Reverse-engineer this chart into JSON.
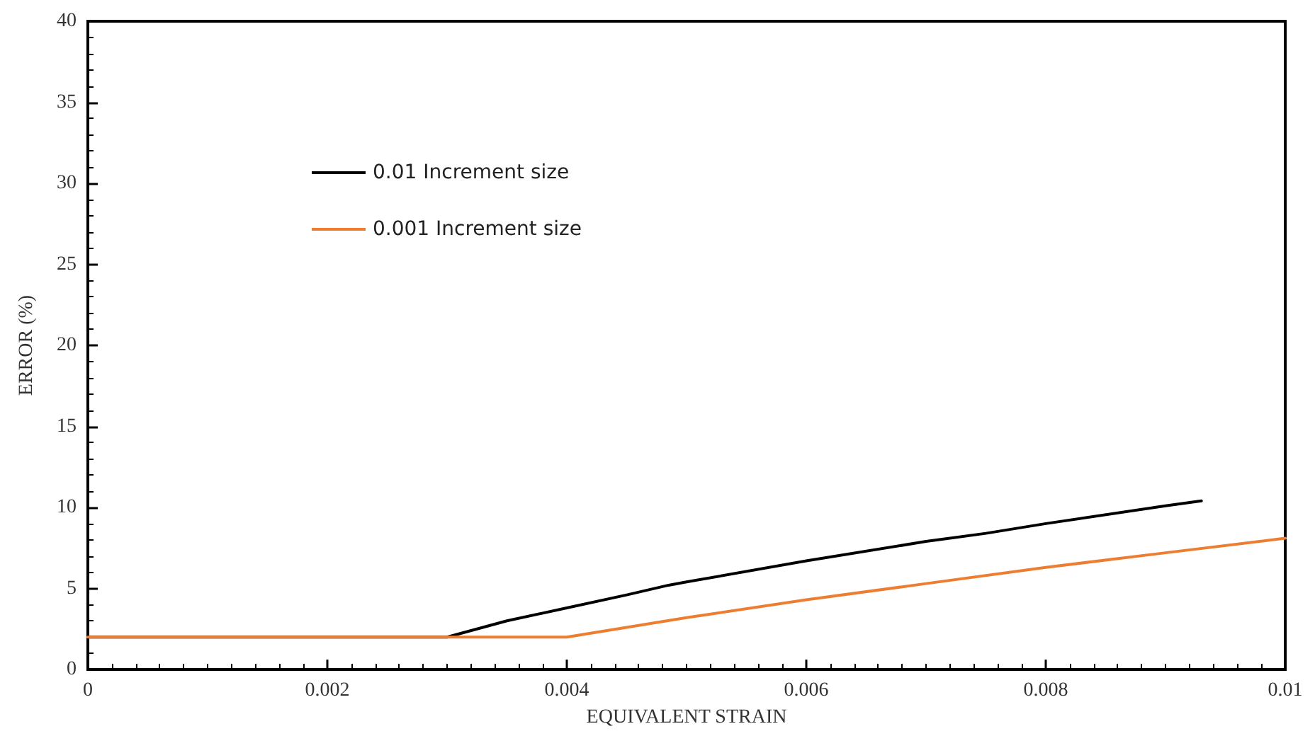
{
  "chart_data": {
    "type": "line",
    "xlabel": "EQUIVALENT STRAIN",
    "ylabel": "ERROR (%)",
    "xlim": [
      0,
      0.01
    ],
    "xticks": [
      0,
      0.002,
      0.004,
      0.006,
      0.008,
      0.01
    ],
    "ylim": [
      0,
      40
    ],
    "yticks": [
      0,
      5,
      10,
      15,
      20,
      25,
      30,
      35,
      40
    ],
    "grid": false,
    "legend": "top left",
    "marker": "none",
    "line_style": "solid",
    "series": [
      {
        "name": "0.01 Increment size",
        "color": "#000000",
        "x": [
          0,
          0.003,
          0.0035,
          0.004,
          0.0045,
          0.00485,
          0.005,
          0.006,
          0.007,
          0.0075,
          0.008,
          0.009,
          0.0093
        ],
        "values": [
          2,
          2,
          3.0,
          3.8,
          4.6,
          5.2,
          5.4,
          6.7,
          7.9,
          8.4,
          9.0,
          10.1,
          10.4
        ]
      },
      {
        "name": "0.001 Increment size",
        "color": "#ed7d31",
        "x": [
          0,
          0.004,
          0.005,
          0.006,
          0.007,
          0.008,
          0.009,
          0.01
        ],
        "values": [
          2,
          2,
          3.2,
          4.3,
          5.3,
          6.3,
          7.2,
          8.1
        ]
      }
    ]
  }
}
